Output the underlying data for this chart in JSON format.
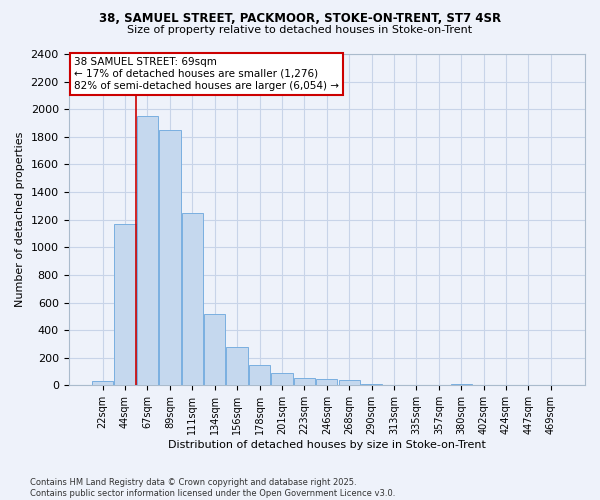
{
  "title1": "38, SAMUEL STREET, PACKMOOR, STOKE-ON-TRENT, ST7 4SR",
  "title2": "Size of property relative to detached houses in Stoke-on-Trent",
  "xlabel": "Distribution of detached houses by size in Stoke-on-Trent",
  "ylabel": "Number of detached properties",
  "categories": [
    "22sqm",
    "44sqm",
    "67sqm",
    "89sqm",
    "111sqm",
    "134sqm",
    "156sqm",
    "178sqm",
    "201sqm",
    "223sqm",
    "246sqm",
    "268sqm",
    "290sqm",
    "313sqm",
    "335sqm",
    "357sqm",
    "380sqm",
    "402sqm",
    "424sqm",
    "447sqm",
    "469sqm"
  ],
  "values": [
    30,
    1170,
    1950,
    1850,
    1250,
    520,
    275,
    150,
    90,
    55,
    45,
    40,
    10,
    5,
    3,
    2,
    10,
    2,
    1,
    1,
    5
  ],
  "bar_color": "#c5d8ee",
  "bar_edge_color": "#7aafe0",
  "property_sqm": 69,
  "annotation_title": "38 SAMUEL STREET: 69sqm",
  "annotation_line1": "← 17% of detached houses are smaller (1,276)",
  "annotation_line2": "82% of semi-detached houses are larger (6,054) →",
  "annotation_box_color": "#ffffff",
  "annotation_box_edge": "#cc0000",
  "vline_color": "#cc0000",
  "grid_color": "#c8d4e8",
  "background_color": "#eef2fa",
  "ylim": [
    0,
    2400
  ],
  "yticks": [
    0,
    200,
    400,
    600,
    800,
    1000,
    1200,
    1400,
    1600,
    1800,
    2000,
    2200,
    2400
  ],
  "footer1": "Contains HM Land Registry data © Crown copyright and database right 2025.",
  "footer2": "Contains public sector information licensed under the Open Government Licence v3.0."
}
